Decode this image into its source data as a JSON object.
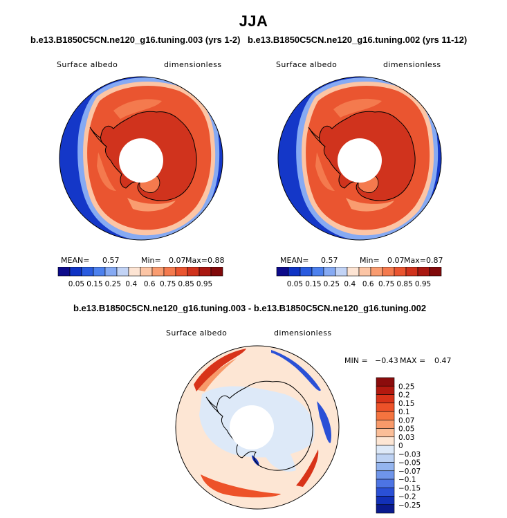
{
  "title": "JJA",
  "left_panel": {
    "case": "b.e13.B1850C5CN.ne120_g16.tuning.003 (yrs 1-2)",
    "variable": "Surface albedo",
    "units": "dimensionless",
    "mean_label": "MEAN=",
    "mean": "0.57",
    "min_label": "Min=",
    "min": "0.07",
    "max_label": "Max=",
    "max": "0.88"
  },
  "right_panel": {
    "case": "b.e13.B1850C5CN.ne120_g16.tuning.002 (yrs 11-12)",
    "variable": "Surface albedo",
    "units": "dimensionless",
    "mean_label": "MEAN=",
    "mean": "0.57",
    "min_label": "Min=",
    "min": "0.07",
    "max_label": "Max=",
    "max": "0.87"
  },
  "diff_panel": {
    "title": "b.e13.B1850C5CN.ne120_g16.tuning.003 - b.e13.B1850C5CN.ne120_g16.tuning.002",
    "variable": "Surface albedo",
    "units": "dimensionless",
    "min_label": "MIN =",
    "min": "−0.43",
    "max_label": "MAX =",
    "max": "0.47"
  },
  "chart_data": [
    {
      "type": "heatmap",
      "projection": "south polar stereographic",
      "title": "b.e13.B1850C5CN.ne120_g16.tuning.003 (yrs 1-2)",
      "variable": "Surface albedo",
      "units": "dimensionless",
      "mean": 0.57,
      "min": 0.07,
      "max": 0.88,
      "colorbar": {
        "orientation": "horizontal",
        "labels": [
          "0.05",
          "0.15",
          "0.25",
          "0.4",
          "0.6",
          "0.75",
          "0.85",
          "0.95"
        ],
        "colors": [
          "#0c0a8a",
          "#0f33c4",
          "#2a5bdf",
          "#4d81ee",
          "#86aaf3",
          "#c2d3f5",
          "#fde4d3",
          "#fcc5a5",
          "#f99c70",
          "#f47a4e",
          "#ea5530",
          "#d0331d",
          "#a91811",
          "#80090a"
        ]
      }
    },
    {
      "type": "heatmap",
      "projection": "south polar stereographic",
      "title": "b.e13.B1850C5CN.ne120_g16.tuning.002 (yrs 11-12)",
      "variable": "Surface albedo",
      "units": "dimensionless",
      "mean": 0.57,
      "min": 0.07,
      "max": 0.87,
      "colorbar": {
        "orientation": "horizontal",
        "labels": [
          "0.05",
          "0.15",
          "0.25",
          "0.4",
          "0.6",
          "0.75",
          "0.85",
          "0.95"
        ],
        "colors": [
          "#0c0a8a",
          "#0f33c4",
          "#2a5bdf",
          "#4d81ee",
          "#86aaf3",
          "#c2d3f5",
          "#fde4d3",
          "#fcc5a5",
          "#f99c70",
          "#f47a4e",
          "#ea5530",
          "#d0331d",
          "#a91811",
          "#80090a"
        ]
      }
    },
    {
      "type": "heatmap",
      "projection": "south polar stereographic",
      "title": "b.e13.B1850C5CN.ne120_g16.tuning.003 - b.e13.B1850C5CN.ne120_g16.tuning.002",
      "variable": "Surface albedo",
      "units": "dimensionless",
      "min": -0.43,
      "max": 0.47,
      "colorbar": {
        "orientation": "vertical",
        "labels": [
          "0.25",
          "0.2",
          "0.15",
          "0.1",
          "0.07",
          "0.05",
          "0.03",
          "0",
          "−0.03",
          "−0.05",
          "−0.07",
          "−0.1",
          "−0.15",
          "−0.2",
          "−0.25"
        ],
        "colors": [
          "#8b0c0c",
          "#b3190f",
          "#d83319",
          "#ed5229",
          "#f5743f",
          "#f89a6a",
          "#fbbe98",
          "#fde6d4",
          "#dde9f8",
          "#bdd2f3",
          "#94b5ef",
          "#6f95ea",
          "#4d74e4",
          "#2a50d6",
          "#1230b8",
          "#0a1a8e"
        ]
      }
    }
  ]
}
